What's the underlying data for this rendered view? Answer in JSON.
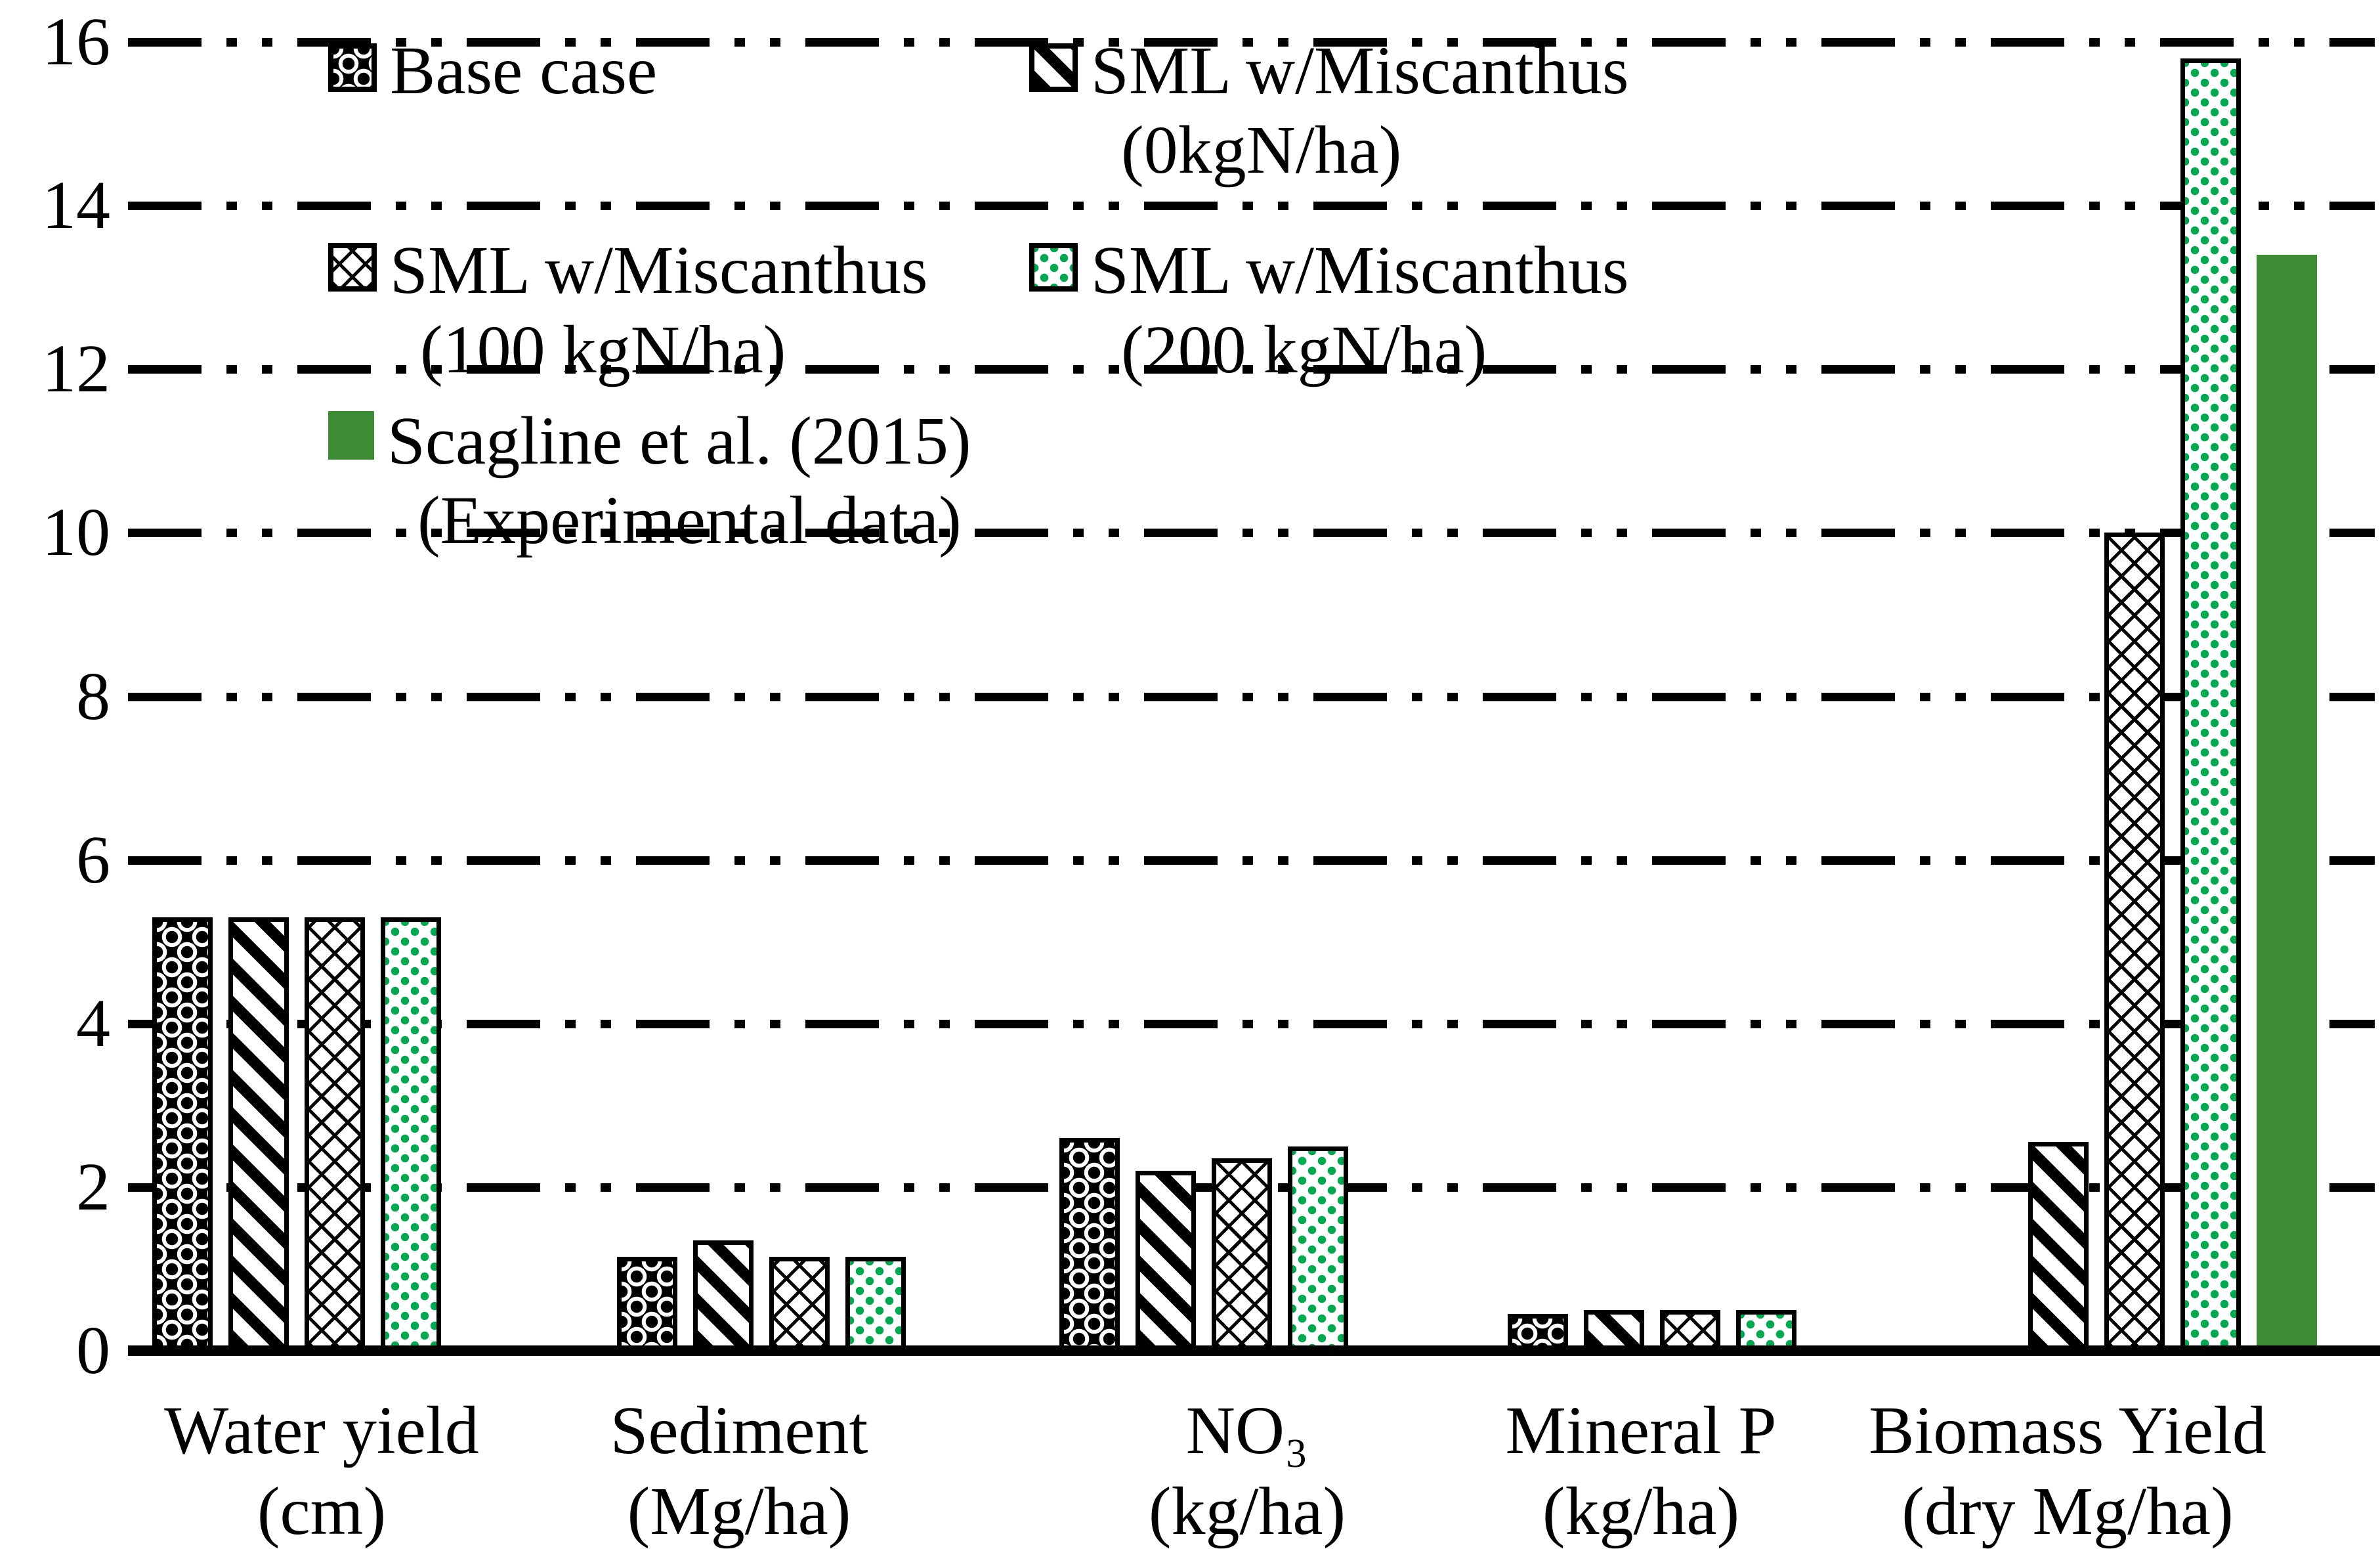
{
  "chart_data": {
    "type": "bar",
    "title": "",
    "xlabel": "",
    "ylabel": "",
    "ylim": [
      0,
      16
    ],
    "yticks": [
      0,
      2,
      4,
      6,
      8,
      10,
      12,
      14,
      16
    ],
    "grid": "horizontal dash-dot-dot",
    "legend_position": "top-left, two columns",
    "categories": [
      {
        "lines": [
          "Water yield",
          "(cm)"
        ]
      },
      {
        "lines": [
          "Sediment",
          "(Mg/ha)"
        ]
      },
      {
        "lines": [
          "NO₃",
          "(kg/ha)"
        ]
      },
      {
        "lines": [
          "Mineral P",
          "(kg/ha)"
        ]
      },
      {
        "lines": [
          "Biomass Yield",
          "(dry Mg/ha)"
        ]
      }
    ],
    "series": [
      {
        "name": "Base case",
        "pattern": "sphere",
        "values": [
          5.3,
          1.15,
          2.6,
          0.45,
          null
        ]
      },
      {
        "name": "SML w/Miscanthus (0kgN/ha)",
        "pattern": "stripes",
        "values": [
          5.3,
          1.35,
          2.2,
          0.5,
          2.55
        ]
      },
      {
        "name": "SML w/Miscanthus (100 kgN/ha)",
        "pattern": "weave",
        "values": [
          5.3,
          1.15,
          2.35,
          0.5,
          10.0
        ]
      },
      {
        "name": "SML w/Miscanthus (200 kgN/ha)",
        "pattern": "gdots",
        "values": [
          5.3,
          1.15,
          2.5,
          0.5,
          15.8
        ]
      },
      {
        "name": "Scagline et al. (2015) (Experimental data)",
        "pattern": "solid",
        "values": [
          null,
          null,
          null,
          null,
          13.4
        ]
      }
    ],
    "colors": {
      "dot_green": "#00a84f",
      "solid_green": "#3e8b35",
      "line_black": "#000000",
      "background": "#ffffff"
    }
  },
  "legend": {
    "items": [
      {
        "pattern": "sphere",
        "lines": [
          "Base case"
        ]
      },
      {
        "pattern": "stripes",
        "lines": [
          "SML w/Miscanthus",
          "(0kgN/ha)"
        ]
      },
      {
        "pattern": "weave",
        "lines": [
          "SML w/Miscanthus",
          "(100 kgN/ha)"
        ]
      },
      {
        "pattern": "gdots",
        "lines": [
          "SML w/Miscanthus",
          "(200 kgN/ha)"
        ]
      },
      {
        "pattern": "solid",
        "lines": [
          "Scagline et al. (2015)",
          "(Experimental data)"
        ]
      }
    ]
  }
}
